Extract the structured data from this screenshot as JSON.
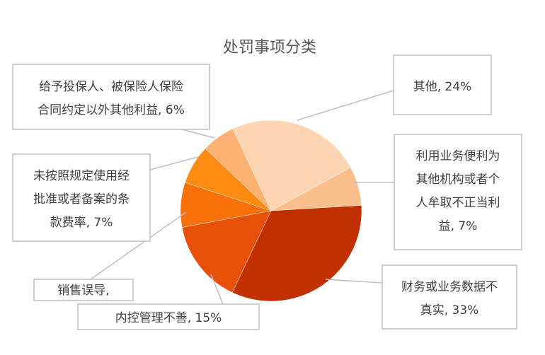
{
  "chart_data": {
    "type": "pie",
    "title": "处罚事项分类",
    "start_category": "其他",
    "direction": "clockwise",
    "slices": [
      {
        "label": "其他",
        "value": 24,
        "pct_text": "24%",
        "color": "#FDD5B2",
        "lines": [
          "其他, 24%"
        ]
      },
      {
        "label": "利用业务便利为其他机构或者个人牟取不正当利益",
        "value": 7,
        "pct_text": "7%",
        "color": "#FBBF8E",
        "lines": [
          "利用业务便利为",
          "其他机构或者个",
          "人牟取不正当利",
          "益, 7%"
        ]
      },
      {
        "label": "财务或业务数据不真实",
        "value": 33,
        "pct_text": "33%",
        "color": "#C33000",
        "lines": [
          "财务或业务数据不",
          "真实, 33%"
        ]
      },
      {
        "label": "内控管理不善",
        "value": 15,
        "pct_text": "15%",
        "color": "#E84F08",
        "lines": [
          "内控管理不善, 15%"
        ]
      },
      {
        "label": "销售误导",
        "value": 8,
        "pct_text": "",
        "color": "#F7700A",
        "lines": [
          "销售误导,"
        ]
      },
      {
        "label": "未按照规定使用经批准或者备案的条款费率",
        "value": 7,
        "pct_text": "7%",
        "color": "#FD8A12",
        "lines": [
          "未按照规定使用经",
          "批准或者备案的条",
          "款费率, 7%"
        ]
      },
      {
        "label": "给予投保人、被保险人保险合同约定以外其他利益",
        "value": 6,
        "pct_text": "6%",
        "color": "#FDB173",
        "lines": [
          "给予投保人、被保险人保险",
          "合同约定以外其他利益, 6%"
        ]
      }
    ]
  }
}
